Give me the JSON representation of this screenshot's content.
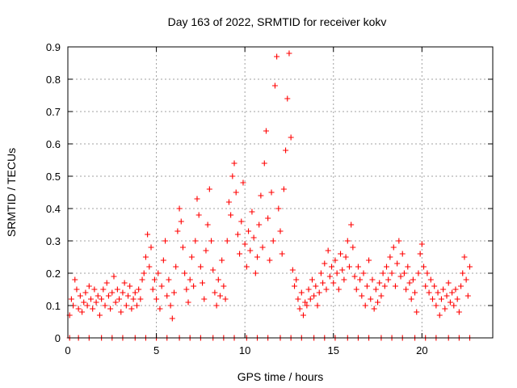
{
  "chart_data": {
    "type": "scatter",
    "title": "Day 163 of 2022, SRMTID for receiver kokv",
    "xlabel": "GPS time / hours",
    "ylabel": "SRMTID / TECUs",
    "xlim": [
      0,
      24
    ],
    "ylim": [
      0,
      0.9
    ],
    "xticks": [
      "0",
      "5",
      "10",
      "15",
      "20"
    ],
    "yticks": [
      "0",
      "0.1",
      "0.2",
      "0.3",
      "0.4",
      "0.5",
      "0.6",
      "0.7",
      "0.8",
      "0.9"
    ],
    "grid": true,
    "marker": "+",
    "color": "#ff0000",
    "series": [
      {
        "name": "SRMTID",
        "points": [
          [
            0.1,
            0.07
          ],
          [
            0.2,
            0.12
          ],
          [
            0.3,
            0.1
          ],
          [
            0.4,
            0.18
          ],
          [
            0.5,
            0.15
          ],
          [
            0.6,
            0.09
          ],
          [
            0.7,
            0.13
          ],
          [
            0.8,
            0.08
          ],
          [
            0.9,
            0.11
          ],
          [
            1.0,
            0.14
          ],
          [
            1.1,
            0.1
          ],
          [
            1.2,
            0.16
          ],
          [
            1.3,
            0.12
          ],
          [
            1.4,
            0.09
          ],
          [
            1.5,
            0.15
          ],
          [
            1.6,
            0.11
          ],
          [
            1.7,
            0.13
          ],
          [
            1.8,
            0.07
          ],
          [
            1.9,
            0.12
          ],
          [
            2.0,
            0.15
          ],
          [
            2.1,
            0.1
          ],
          [
            2.2,
            0.17
          ],
          [
            2.3,
            0.13
          ],
          [
            2.4,
            0.09
          ],
          [
            2.5,
            0.14
          ],
          [
            2.6,
            0.19
          ],
          [
            2.7,
            0.11
          ],
          [
            2.8,
            0.15
          ],
          [
            2.9,
            0.12
          ],
          [
            3.0,
            0.08
          ],
          [
            3.1,
            0.14
          ],
          [
            3.2,
            0.17
          ],
          [
            3.3,
            0.1
          ],
          [
            3.4,
            0.13
          ],
          [
            3.5,
            0.16
          ],
          [
            3.6,
            0.09
          ],
          [
            3.7,
            0.12
          ],
          [
            3.8,
            0.14
          ],
          [
            3.9,
            0.1
          ],
          [
            4.0,
            0.15
          ],
          [
            4.1,
            0.12
          ],
          [
            4.2,
            0.18
          ],
          [
            4.3,
            0.2
          ],
          [
            4.4,
            0.25
          ],
          [
            4.5,
            0.32
          ],
          [
            4.6,
            0.22
          ],
          [
            4.7,
            0.28
          ],
          [
            4.8,
            0.15
          ],
          [
            4.9,
            0.18
          ],
          [
            5.0,
            0.12
          ],
          [
            5.1,
            0.2
          ],
          [
            5.2,
            0.09
          ],
          [
            5.3,
            0.16
          ],
          [
            5.4,
            0.24
          ],
          [
            5.5,
            0.3
          ],
          [
            5.6,
            0.13
          ],
          [
            5.7,
            0.18
          ],
          [
            5.8,
            0.1
          ],
          [
            5.9,
            0.06
          ],
          [
            6.0,
            0.14
          ],
          [
            6.1,
            0.22
          ],
          [
            6.2,
            0.33
          ],
          [
            6.3,
            0.4
          ],
          [
            6.4,
            0.36
          ],
          [
            6.5,
            0.28
          ],
          [
            6.6,
            0.2
          ],
          [
            6.7,
            0.15
          ],
          [
            6.8,
            0.11
          ],
          [
            6.9,
            0.18
          ],
          [
            7.0,
            0.25
          ],
          [
            7.1,
            0.16
          ],
          [
            7.2,
            0.3
          ],
          [
            7.3,
            0.43
          ],
          [
            7.4,
            0.38
          ],
          [
            7.5,
            0.22
          ],
          [
            7.6,
            0.17
          ],
          [
            7.7,
            0.12
          ],
          [
            7.8,
            0.27
          ],
          [
            7.9,
            0.35
          ],
          [
            8.0,
            0.46
          ],
          [
            8.1,
            0.3
          ],
          [
            8.2,
            0.21
          ],
          [
            8.3,
            0.14
          ],
          [
            8.4,
            0.1
          ],
          [
            8.5,
            0.18
          ],
          [
            8.6,
            0.13
          ],
          [
            8.7,
            0.24
          ],
          [
            8.8,
            0.16
          ],
          [
            8.9,
            0.12
          ],
          [
            9.0,
            0.3
          ],
          [
            9.1,
            0.42
          ],
          [
            9.2,
            0.38
          ],
          [
            9.3,
            0.5
          ],
          [
            9.4,
            0.54
          ],
          [
            9.5,
            0.45
          ],
          [
            9.6,
            0.32
          ],
          [
            9.7,
            0.26
          ],
          [
            9.8,
            0.36
          ],
          [
            9.9,
            0.48
          ],
          [
            10.0,
            0.29
          ],
          [
            10.1,
            0.22
          ],
          [
            10.2,
            0.33
          ],
          [
            10.3,
            0.27
          ],
          [
            10.4,
            0.39
          ],
          [
            10.5,
            0.31
          ],
          [
            10.6,
            0.2
          ],
          [
            10.7,
            0.25
          ],
          [
            10.8,
            0.35
          ],
          [
            10.9,
            0.44
          ],
          [
            11.0,
            0.28
          ],
          [
            11.1,
            0.54
          ],
          [
            11.2,
            0.64
          ],
          [
            11.3,
            0.37
          ],
          [
            11.4,
            0.24
          ],
          [
            11.5,
            0.45
          ],
          [
            11.6,
            0.3
          ],
          [
            11.7,
            0.78
          ],
          [
            11.8,
            0.87
          ],
          [
            11.9,
            0.4
          ],
          [
            12.0,
            0.33
          ],
          [
            12.1,
            0.26
          ],
          [
            12.2,
            0.46
          ],
          [
            12.3,
            0.58
          ],
          [
            12.4,
            0.74
          ],
          [
            12.5,
            0.88
          ],
          [
            12.6,
            0.62
          ],
          [
            12.7,
            0.21
          ],
          [
            12.8,
            0.16
          ],
          [
            12.9,
            0.18
          ],
          [
            13.0,
            0.12
          ],
          [
            13.1,
            0.09
          ],
          [
            13.2,
            0.14
          ],
          [
            13.3,
            0.07
          ],
          [
            13.4,
            0.11
          ],
          [
            13.5,
            0.1
          ],
          [
            13.6,
            0.15
          ],
          [
            13.7,
            0.12
          ],
          [
            13.8,
            0.18
          ],
          [
            13.9,
            0.13
          ],
          [
            14.0,
            0.16
          ],
          [
            14.1,
            0.1
          ],
          [
            14.2,
            0.14
          ],
          [
            14.3,
            0.2
          ],
          [
            14.4,
            0.17
          ],
          [
            14.5,
            0.23
          ],
          [
            14.6,
            0.15
          ],
          [
            14.7,
            0.27
          ],
          [
            14.8,
            0.19
          ],
          [
            14.9,
            0.22
          ],
          [
            15.0,
            0.17
          ],
          [
            15.1,
            0.24
          ],
          [
            15.2,
            0.2
          ],
          [
            15.3,
            0.15
          ],
          [
            15.4,
            0.26
          ],
          [
            15.5,
            0.21
          ],
          [
            15.6,
            0.18
          ],
          [
            15.7,
            0.25
          ],
          [
            15.8,
            0.3
          ],
          [
            15.9,
            0.22
          ],
          [
            16.0,
            0.35
          ],
          [
            16.1,
            0.28
          ],
          [
            16.2,
            0.19
          ],
          [
            16.3,
            0.15
          ],
          [
            16.4,
            0.22
          ],
          [
            16.5,
            0.18
          ],
          [
            16.6,
            0.13
          ],
          [
            16.7,
            0.2
          ],
          [
            16.8,
            0.1
          ],
          [
            16.9,
            0.16
          ],
          [
            17.0,
            0.24
          ],
          [
            17.1,
            0.12
          ],
          [
            17.2,
            0.18
          ],
          [
            17.3,
            0.09
          ],
          [
            17.4,
            0.15
          ],
          [
            17.5,
            0.11
          ],
          [
            17.6,
            0.17
          ],
          [
            17.7,
            0.13
          ],
          [
            17.8,
            0.2
          ],
          [
            17.9,
            0.16
          ],
          [
            18.0,
            0.22
          ],
          [
            18.1,
            0.18
          ],
          [
            18.2,
            0.25
          ],
          [
            18.3,
            0.2
          ],
          [
            18.4,
            0.28
          ],
          [
            18.5,
            0.16
          ],
          [
            18.6,
            0.23
          ],
          [
            18.7,
            0.3
          ],
          [
            18.8,
            0.19
          ],
          [
            18.9,
            0.26
          ],
          [
            19.0,
            0.2
          ],
          [
            19.1,
            0.15
          ],
          [
            19.2,
            0.22
          ],
          [
            19.3,
            0.17
          ],
          [
            19.4,
            0.12
          ],
          [
            19.5,
            0.18
          ],
          [
            19.6,
            0.14
          ],
          [
            19.7,
            0.08
          ],
          [
            19.8,
            0.2
          ],
          [
            19.9,
            0.26
          ],
          [
            20.0,
            0.29
          ],
          [
            20.1,
            0.22
          ],
          [
            20.2,
            0.16
          ],
          [
            20.3,
            0.2
          ],
          [
            20.4,
            0.14
          ],
          [
            20.5,
            0.18
          ],
          [
            20.6,
            0.12
          ],
          [
            20.7,
            0.16
          ],
          [
            20.8,
            0.1
          ],
          [
            20.9,
            0.14
          ],
          [
            21.0,
            0.07
          ],
          [
            21.1,
            0.12
          ],
          [
            21.2,
            0.15
          ],
          [
            21.3,
            0.09
          ],
          [
            21.4,
            0.13
          ],
          [
            21.5,
            0.17
          ],
          [
            21.6,
            0.11
          ],
          [
            21.7,
            0.14
          ],
          [
            21.8,
            0.1
          ],
          [
            21.9,
            0.15
          ],
          [
            22.0,
            0.12
          ],
          [
            22.1,
            0.08
          ],
          [
            22.2,
            0.16
          ],
          [
            22.3,
            0.2
          ],
          [
            22.4,
            0.25
          ],
          [
            22.5,
            0.18
          ],
          [
            22.6,
            0.13
          ],
          [
            22.7,
            0.22
          ]
        ]
      }
    ],
    "baseline_markers_x": [
      0.1,
      0.6,
      1.2,
      1.9,
      2.5,
      3.1,
      3.8,
      4.4,
      5.0,
      5.6,
      6.3,
      6.9,
      7.5,
      8.2,
      8.8,
      9.4,
      10.1,
      10.7,
      11.3,
      12.0,
      12.6,
      13.2,
      13.9,
      14.5,
      15.1,
      15.8,
      16.4,
      17.0,
      17.7,
      18.3,
      18.9,
      19.6,
      20.2,
      20.8,
      21.5,
      22.1,
      22.7
    ]
  }
}
